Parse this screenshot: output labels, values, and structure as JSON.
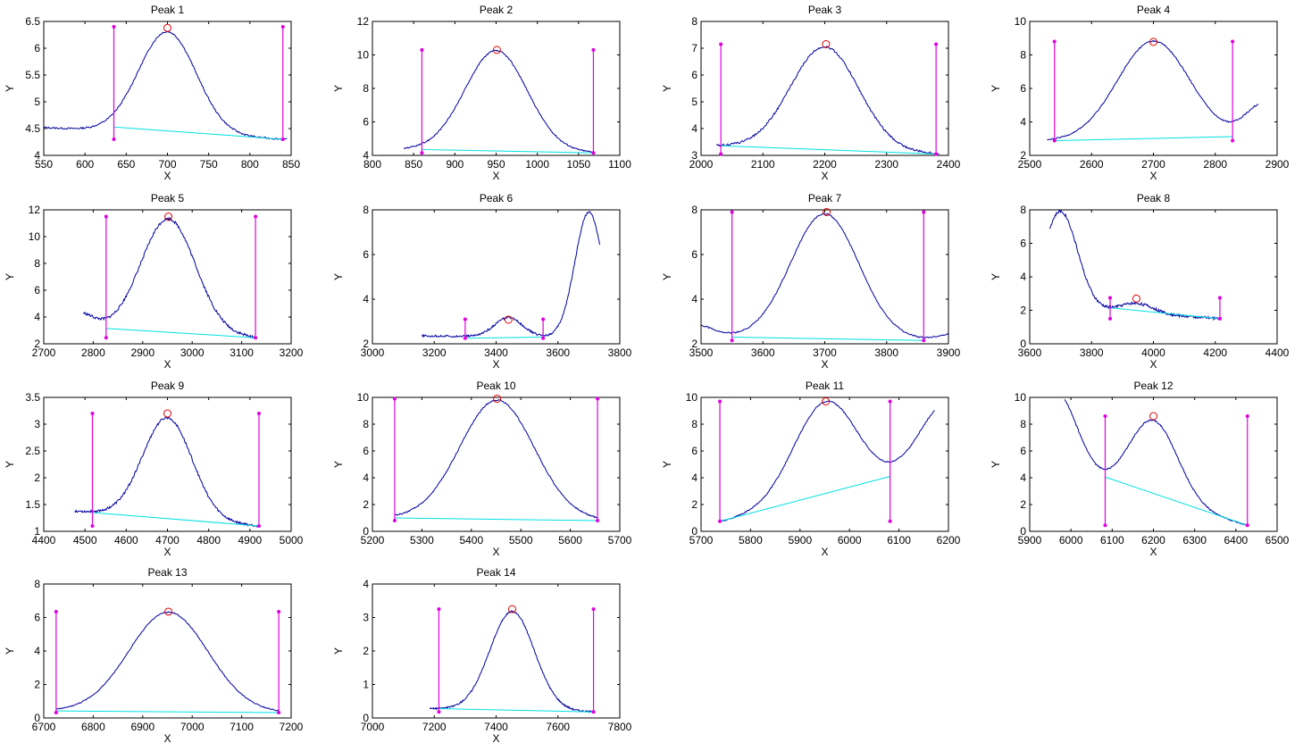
{
  "colors": {
    "signal": "#0000a0",
    "baseline": "#00e0e0",
    "markers": "#e000e0",
    "peak_marker": "#e00000",
    "axes": "#000000"
  },
  "chart_data": [
    {
      "type": "line",
      "title": "Peak 1",
      "xlabel": "X",
      "ylabel": "Y",
      "xlim": [
        550,
        850
      ],
      "ylim": [
        4,
        6.5
      ],
      "xticks": [
        550,
        600,
        650,
        700,
        750,
        800,
        850
      ],
      "yticks": [
        4,
        4.5,
        5,
        5.5,
        6,
        6.5
      ],
      "xtick_labels": [
        "550",
        "600",
        "650",
        "700",
        "750",
        "800",
        "850"
      ],
      "ytick_labels": [
        "4",
        "4.5",
        "5",
        "5.5",
        "6",
        "6.5"
      ],
      "signal": {
        "x0": 550,
        "x1": 845,
        "baseline_start": 4.52,
        "baseline_end": 4.3,
        "peak_center": 700,
        "peak_height": 1.9,
        "peak_width": 35,
        "noise": 0.012
      },
      "baseline": [
        [
          635,
          4.53
        ],
        [
          840,
          4.3
        ]
      ],
      "markers": [
        {
          "x": 635,
          "y_low": 4.3,
          "y_high": 6.4
        },
        {
          "x": 840,
          "y_low": 4.3,
          "y_high": 6.4
        }
      ],
      "peak_marker": [
        700,
        6.38
      ]
    },
    {
      "type": "line",
      "title": "Peak 2",
      "xlabel": "X",
      "ylabel": "Y",
      "xlim": [
        800,
        1100
      ],
      "ylim": [
        4,
        12
      ],
      "xticks": [
        800,
        850,
        900,
        950,
        1000,
        1050,
        1100
      ],
      "yticks": [
        4,
        6,
        8,
        10,
        12
      ],
      "xtick_labels": [
        "800",
        "850",
        "900",
        "950",
        "1000",
        "1050",
        "1100"
      ],
      "ytick_labels": [
        "4",
        "6",
        "8",
        "10",
        "12"
      ],
      "signal": {
        "x0": 838,
        "x1": 1070,
        "baseline_start": 4.35,
        "baseline_end": 4.15,
        "peak_center": 950,
        "peak_height": 6.0,
        "peak_width": 38,
        "noise": 0.01
      },
      "baseline": [
        [
          860,
          4.35
        ],
        [
          1068,
          4.15
        ]
      ],
      "markers": [
        {
          "x": 860,
          "y_low": 4.15,
          "y_high": 10.3
        },
        {
          "x": 1068,
          "y_low": 4.15,
          "y_high": 10.3
        }
      ],
      "peak_marker": [
        951,
        10.3
      ]
    },
    {
      "type": "line",
      "title": "Peak 3",
      "xlabel": "X",
      "ylabel": "Y",
      "xlim": [
        2000,
        2400
      ],
      "ylim": [
        3,
        8
      ],
      "xticks": [
        2000,
        2100,
        2200,
        2300,
        2400
      ],
      "yticks": [
        3,
        4,
        5,
        6,
        7,
        8
      ],
      "xtick_labels": [
        "2000",
        "2100",
        "2200",
        "2300",
        "2400"
      ],
      "ytick_labels": [
        "3",
        "4",
        "5",
        "6",
        "7",
        "8"
      ],
      "signal": {
        "x0": 2025,
        "x1": 2385,
        "baseline_start": 3.35,
        "baseline_end": 3.05,
        "peak_center": 2200,
        "peak_height": 3.85,
        "peak_width": 55,
        "noise": 0.015
      },
      "baseline": [
        [
          2032,
          3.36
        ],
        [
          2380,
          3.05
        ]
      ],
      "markers": [
        {
          "x": 2032,
          "y_low": 3.05,
          "y_high": 7.15
        },
        {
          "x": 2380,
          "y_low": 3.05,
          "y_high": 7.15
        }
      ],
      "peak_marker": [
        2202,
        7.15
      ]
    },
    {
      "type": "line",
      "title": "Peak 4",
      "xlabel": "X",
      "ylabel": "Y",
      "xlim": [
        2500,
        2900
      ],
      "ylim": [
        2,
        10
      ],
      "xticks": [
        2500,
        2600,
        2700,
        2800,
        2900
      ],
      "yticks": [
        2,
        4,
        6,
        8,
        10
      ],
      "xtick_labels": [
        "2500",
        "2600",
        "2700",
        "2800",
        "2900"
      ],
      "ytick_labels": [
        "2",
        "4",
        "6",
        "8",
        "10"
      ],
      "signal": {
        "x0": 2528,
        "x1": 2870,
        "baseline_start": 2.85,
        "baseline_end": 3.1,
        "peak_center": 2700,
        "peak_height": 5.85,
        "peak_width": 58,
        "noise": 0.01,
        "rise_at_end": 2.0,
        "rise_center": 2880,
        "rise_width": 30
      },
      "baseline": [
        [
          2540,
          2.88
        ],
        [
          2828,
          3.12
        ]
      ],
      "markers": [
        {
          "x": 2540,
          "y_low": 2.88,
          "y_high": 8.8
        },
        {
          "x": 2828,
          "y_low": 2.88,
          "y_high": 8.8
        }
      ],
      "peak_marker": [
        2700,
        8.78
      ]
    },
    {
      "type": "line",
      "title": "Peak 5",
      "xlabel": "X",
      "ylabel": "Y",
      "xlim": [
        2700,
        3200
      ],
      "ylim": [
        2,
        12
      ],
      "xticks": [
        2700,
        2800,
        2900,
        3000,
        3100,
        3200
      ],
      "yticks": [
        2,
        4,
        6,
        8,
        10,
        12
      ],
      "xtick_labels": [
        "2700",
        "2800",
        "2900",
        "3000",
        "3100",
        "3200"
      ],
      "ytick_labels": [
        "2",
        "4",
        "6",
        "8",
        "10",
        "12"
      ],
      "signal": {
        "x0": 2780,
        "x1": 3128,
        "baseline_start": 3.2,
        "baseline_end": 2.45,
        "peak_center": 2952,
        "peak_height": 8.5,
        "peak_width": 55,
        "noise": 0.02,
        "rise_at_start": 1.1,
        "rise_center": 2770,
        "rise_width": 30
      },
      "baseline": [
        [
          2826,
          3.15
        ],
        [
          3128,
          2.45
        ]
      ],
      "markers": [
        {
          "x": 2826,
          "y_low": 2.45,
          "y_high": 11.5
        },
        {
          "x": 3128,
          "y_low": 2.45,
          "y_high": 11.5
        }
      ],
      "peak_marker": [
        2952,
        11.5
      ]
    },
    {
      "type": "line",
      "title": "Peak 6",
      "xlabel": "X",
      "ylabel": "Y",
      "xlim": [
        3000,
        3800
      ],
      "ylim": [
        2,
        8
      ],
      "xticks": [
        3000,
        3200,
        3400,
        3600,
        3800
      ],
      "yticks": [
        2,
        4,
        6,
        8
      ],
      "xtick_labels": [
        "3000",
        "3200",
        "3400",
        "3600",
        "3800"
      ],
      "ytick_labels": [
        "2",
        "4",
        "6",
        "8"
      ],
      "signal": {
        "x0": 3160,
        "x1": 3735,
        "baseline_start": 2.35,
        "baseline_end": 2.3,
        "peak_center": 3440,
        "peak_height": 0.85,
        "peak_width": 45,
        "noise": 0.015,
        "rise_at_end": 5.6,
        "rise_center": 3700,
        "rise_width": 45
      },
      "baseline": [
        [
          3300,
          2.25
        ],
        [
          3552,
          2.3
        ]
      ],
      "markers": [
        {
          "x": 3300,
          "y_low": 2.25,
          "y_high": 3.1
        },
        {
          "x": 3552,
          "y_low": 2.25,
          "y_high": 3.1
        }
      ],
      "peak_marker": [
        3440,
        3.08
      ]
    },
    {
      "type": "line",
      "title": "Peak 7",
      "xlabel": "X",
      "ylabel": "Y",
      "xlim": [
        3500,
        3900
      ],
      "ylim": [
        2,
        8
      ],
      "xticks": [
        3500,
        3600,
        3700,
        3800,
        3900
      ],
      "yticks": [
        2,
        4,
        6,
        8
      ],
      "xtick_labels": [
        "3500",
        "3600",
        "3700",
        "3800",
        "3900"
      ],
      "ytick_labels": [
        "2",
        "4",
        "6",
        "8"
      ],
      "signal": {
        "x0": 3500,
        "x1": 3900,
        "baseline_start": 2.3,
        "baseline_end": 2.15,
        "peak_center": 3700,
        "peak_height": 5.6,
        "peak_width": 55,
        "noise": 0.01,
        "rise_at_start": 0.55,
        "rise_center": 3490,
        "rise_width": 30,
        "rise_at_end": 0.3,
        "rise_end_center": 3910,
        "rise_end_width": 25
      },
      "baseline": [
        [
          3550,
          2.3
        ],
        [
          3860,
          2.15
        ]
      ],
      "markers": [
        {
          "x": 3550,
          "y_low": 2.15,
          "y_high": 7.9
        },
        {
          "x": 3860,
          "y_low": 2.15,
          "y_high": 7.9
        }
      ],
      "peak_marker": [
        3703,
        7.9
      ]
    },
    {
      "type": "line",
      "title": "Peak 8",
      "xlabel": "X",
      "ylabel": "Y",
      "xlim": [
        3600,
        4400
      ],
      "ylim": [
        0,
        8
      ],
      "xticks": [
        3600,
        3800,
        4000,
        4200,
        4400
      ],
      "yticks": [
        0,
        2,
        4,
        6,
        8
      ],
      "xtick_labels": [
        "3600",
        "3800",
        "4000",
        "4200",
        "4400"
      ],
      "ytick_labels": [
        "0",
        "2",
        "4",
        "6",
        "8"
      ],
      "signal": {
        "x0": 3665,
        "x1": 4220,
        "baseline_start": 2.15,
        "baseline_end": 1.5,
        "peak_center": 3945,
        "peak_height": 0.6,
        "peak_width": 55,
        "noise": 0.02,
        "rise_at_start": 5.8,
        "rise_center": 3700,
        "rise_width": 55
      },
      "baseline": [
        [
          3860,
          2.15
        ],
        [
          4215,
          1.5
        ]
      ],
      "markers": [
        {
          "x": 3860,
          "y_low": 1.5,
          "y_high": 2.75
        },
        {
          "x": 4215,
          "y_low": 1.5,
          "y_high": 2.75
        }
      ],
      "peak_marker": [
        3945,
        2.7
      ]
    },
    {
      "type": "line",
      "title": "Peak 9",
      "xlabel": "X",
      "ylabel": "Y",
      "xlim": [
        4400,
        5000
      ],
      "ylim": [
        1,
        3.5
      ],
      "xticks": [
        4400,
        4500,
        4600,
        4700,
        4800,
        4900,
        5000
      ],
      "yticks": [
        1,
        1.5,
        2,
        2.5,
        3,
        3.5
      ],
      "xtick_labels": [
        "4400",
        "4500",
        "4600",
        "4700",
        "4800",
        "4900",
        "5000"
      ],
      "ytick_labels": [
        "1",
        "1.5",
        "2",
        "2.5",
        "3",
        "3.5"
      ],
      "signal": {
        "x0": 4475,
        "x1": 4925,
        "baseline_start": 1.38,
        "baseline_end": 1.1,
        "peak_center": 4700,
        "peak_height": 1.88,
        "peak_width": 60,
        "noise": 0.018
      },
      "baseline": [
        [
          4518,
          1.35
        ],
        [
          4922,
          1.1
        ]
      ],
      "markers": [
        {
          "x": 4518,
          "y_low": 1.1,
          "y_high": 3.2
        },
        {
          "x": 4922,
          "y_low": 1.1,
          "y_high": 3.2
        }
      ],
      "peak_marker": [
        4700,
        3.2
      ]
    },
    {
      "type": "line",
      "title": "Peak 10",
      "xlabel": "X",
      "ylabel": "Y",
      "xlim": [
        5200,
        5700
      ],
      "ylim": [
        0,
        10
      ],
      "xticks": [
        5200,
        5300,
        5400,
        5500,
        5600,
        5700
      ],
      "yticks": [
        0,
        2,
        4,
        6,
        8,
        10
      ],
      "xtick_labels": [
        "5200",
        "5300",
        "5400",
        "5500",
        "5600",
        "5700"
      ],
      "ytick_labels": [
        "0",
        "2",
        "4",
        "6",
        "8",
        "10"
      ],
      "signal": {
        "x0": 5245,
        "x1": 5655,
        "baseline_start": 1.0,
        "baseline_end": 0.8,
        "peak_center": 5452,
        "peak_height": 8.9,
        "peak_width": 75,
        "noise": 0.01
      },
      "baseline": [
        [
          5245,
          1.0
        ],
        [
          5655,
          0.8
        ]
      ],
      "markers": [
        {
          "x": 5245,
          "y_low": 0.8,
          "y_high": 9.9
        },
        {
          "x": 5655,
          "y_low": 0.8,
          "y_high": 9.9
        }
      ],
      "peak_marker": [
        5452,
        9.9
      ]
    },
    {
      "type": "line",
      "title": "Peak 11",
      "xlabel": "X",
      "ylabel": "Y",
      "xlim": [
        5700,
        6200
      ],
      "ylim": [
        0,
        10
      ],
      "xticks": [
        5700,
        5800,
        5900,
        6000,
        6100,
        6200
      ],
      "yticks": [
        0,
        2,
        4,
        6,
        8,
        10
      ],
      "xtick_labels": [
        "5700",
        "5800",
        "5900",
        "6000",
        "6100",
        "6200"
      ],
      "ytick_labels": [
        "0",
        "2",
        "4",
        "6",
        "8",
        "10"
      ],
      "signal": {
        "x0": 5738,
        "x1": 6172,
        "baseline_start": 0.7,
        "baseline_end": 4.1,
        "peak_center": 5952,
        "peak_height": 7.3,
        "peak_width": 65,
        "noise": 0.01,
        "rise_at_end": 5.5,
        "rise_center": 6200,
        "rise_width": 60
      },
      "baseline": [
        [
          5738,
          0.75
        ],
        [
          6082,
          4.1
        ]
      ],
      "markers": [
        {
          "x": 5738,
          "y_low": 0.75,
          "y_high": 9.7
        },
        {
          "x": 6082,
          "y_low": 0.75,
          "y_high": 9.7
        }
      ],
      "peak_marker": [
        5952,
        9.7
      ]
    },
    {
      "type": "line",
      "title": "Peak 12",
      "xlabel": "X",
      "ylabel": "Y",
      "xlim": [
        5900,
        6500
      ],
      "ylim": [
        0,
        10
      ],
      "xticks": [
        5900,
        6000,
        6100,
        6200,
        6300,
        6400,
        6500
      ],
      "yticks": [
        0,
        2,
        4,
        6,
        8,
        10
      ],
      "xtick_labels": [
        "5900",
        "6000",
        "6100",
        "6200",
        "6300",
        "6400",
        "6500"
      ],
      "ytick_labels": [
        "0",
        "2",
        "4",
        "6",
        "8",
        "10"
      ],
      "signal": {
        "x0": 5985,
        "x1": 6430,
        "baseline_start": 4.0,
        "baseline_end": 0.45,
        "peak_center": 6200,
        "peak_height": 6.0,
        "peak_width": 60,
        "noise": 0.01,
        "rise_at_start": 6.5,
        "rise_center": 5960,
        "rise_width": 55
      },
      "baseline": [
        [
          6083,
          4.05
        ],
        [
          6428,
          0.45
        ]
      ],
      "markers": [
        {
          "x": 6083,
          "y_low": 0.45,
          "y_high": 8.6
        },
        {
          "x": 6428,
          "y_low": 0.45,
          "y_high": 8.6
        }
      ],
      "peak_marker": [
        6200,
        8.6
      ]
    },
    {
      "type": "line",
      "title": "Peak 13",
      "xlabel": "X",
      "ylabel": "Y",
      "xlim": [
        6700,
        7200
      ],
      "ylim": [
        0,
        8
      ],
      "xticks": [
        6700,
        6800,
        6900,
        7000,
        7100,
        7200
      ],
      "yticks": [
        0,
        2,
        4,
        6,
        8
      ],
      "xtick_labels": [
        "6700",
        "6800",
        "6900",
        "7000",
        "7100",
        "7200"
      ],
      "ytick_labels": [
        "0",
        "2",
        "4",
        "6",
        "8"
      ],
      "signal": {
        "x0": 6725,
        "x1": 7175,
        "baseline_start": 0.42,
        "baseline_end": 0.32,
        "peak_center": 6952,
        "peak_height": 5.95,
        "peak_width": 80,
        "noise": 0.008
      },
      "baseline": [
        [
          6725,
          0.42
        ],
        [
          7175,
          0.32
        ]
      ],
      "markers": [
        {
          "x": 6725,
          "y_low": 0.32,
          "y_high": 6.35
        },
        {
          "x": 7175,
          "y_low": 0.32,
          "y_high": 6.35
        }
      ],
      "peak_marker": [
        6952,
        6.35
      ]
    },
    {
      "type": "line",
      "title": "Peak 14",
      "xlabel": "X",
      "ylabel": "Y",
      "xlim": [
        7000,
        7800
      ],
      "ylim": [
        0,
        4
      ],
      "xticks": [
        7000,
        7200,
        7400,
        7600,
        7800
      ],
      "yticks": [
        0,
        1,
        2,
        3,
        4
      ],
      "xtick_labels": [
        "7000",
        "7200",
        "7400",
        "7600",
        "7800"
      ],
      "ytick_labels": [
        "0",
        "1",
        "2",
        "3",
        "4"
      ],
      "signal": {
        "x0": 7185,
        "x1": 7720,
        "baseline_start": 0.28,
        "baseline_end": 0.18,
        "peak_center": 7452,
        "peak_height": 2.95,
        "peak_width": 72,
        "noise": 0.012
      },
      "baseline": [
        [
          7215,
          0.28
        ],
        [
          7715,
          0.18
        ]
      ],
      "markers": [
        {
          "x": 7215,
          "y_low": 0.18,
          "y_high": 3.25
        },
        {
          "x": 7715,
          "y_low": 0.18,
          "y_high": 3.25
        }
      ],
      "peak_marker": [
        7452,
        3.25
      ]
    }
  ]
}
